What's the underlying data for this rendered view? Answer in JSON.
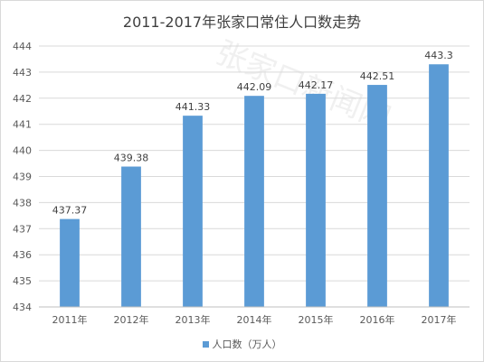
{
  "chart_data": {
    "type": "bar",
    "title": "2011-2017年张家口常住人口数走势",
    "categories": [
      "2011年",
      "2012年",
      "2013年",
      "2014年",
      "2015年",
      "2016年",
      "2017年"
    ],
    "series": [
      {
        "name": "人口数（万人）",
        "values": [
          437.37,
          439.38,
          441.33,
          442.09,
          442.17,
          442.51,
          443.3
        ]
      }
    ],
    "data_labels": [
      "437.37",
      "439.38",
      "441.33",
      "442.09",
      "442.17",
      "442.51",
      "443.3"
    ],
    "ylim": [
      434,
      444
    ],
    "yticks": [
      "434",
      "435",
      "436",
      "437",
      "438",
      "439",
      "440",
      "441",
      "442",
      "443",
      "444"
    ],
    "xlabel": "",
    "ylabel": "",
    "grid": true,
    "legend_position": "bottom",
    "bar_color": "#5b9bd5",
    "grid_color": "#d9d9d9"
  },
  "watermark_text": "张家口新闻网"
}
